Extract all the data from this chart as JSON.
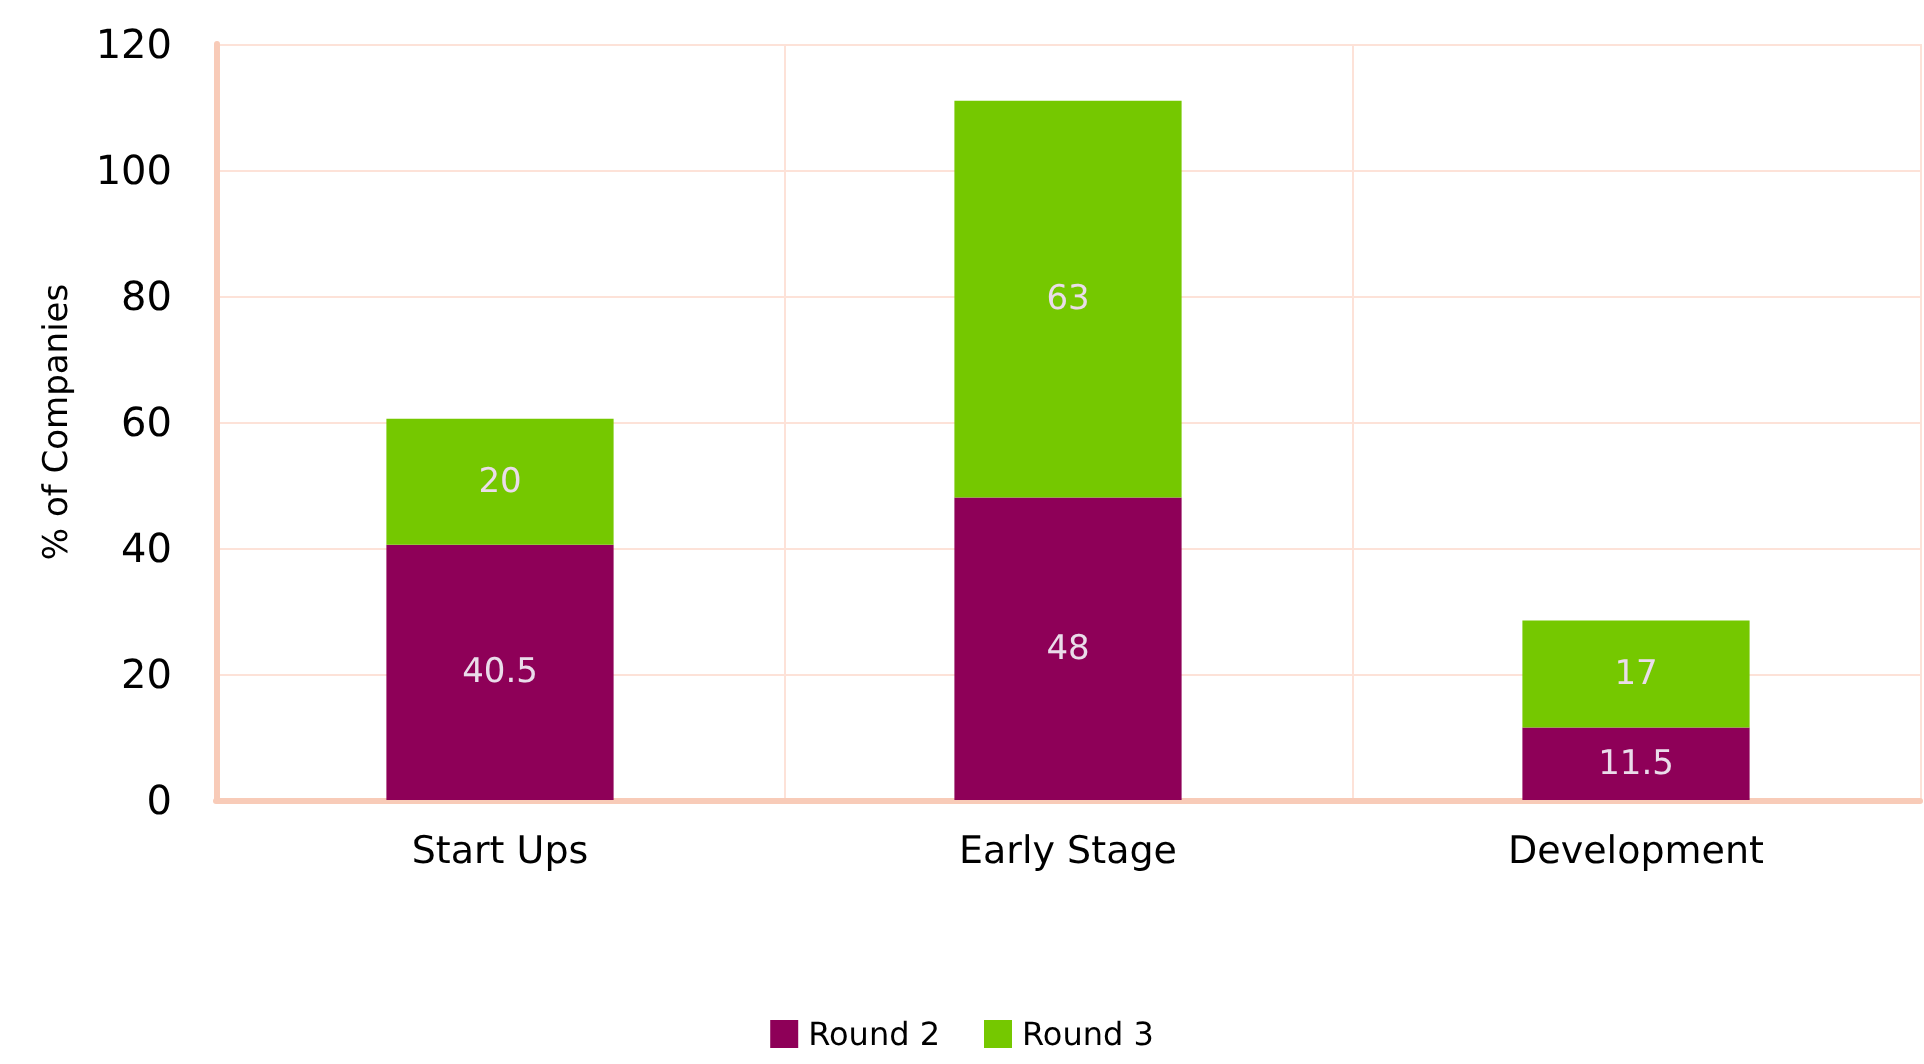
{
  "chart_data": {
    "type": "bar",
    "stacked": true,
    "ylabel": "% of Companies",
    "categories": [
      "Start Ups",
      "Early Stage",
      "Development"
    ],
    "series": [
      {
        "name": "Round 2",
        "color": "#8e0058",
        "values": [
          40.5,
          48,
          11.5
        ]
      },
      {
        "name": "Round 3",
        "color": "#75c800",
        "values": [
          20,
          63,
          17
        ]
      }
    ],
    "ylim": [
      0,
      120
    ],
    "yticks": [
      0,
      20,
      40,
      60,
      80,
      100,
      120
    ],
    "grid": true,
    "legend": "bottom",
    "data_labels": true
  }
}
